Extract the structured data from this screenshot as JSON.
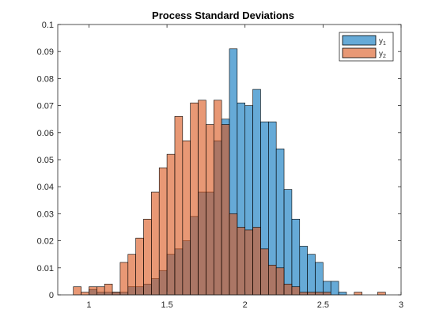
{
  "chart_data": {
    "type": "histogram",
    "title": "Process Standard Deviations",
    "xlabel": "",
    "ylabel": "",
    "xlim": [
      0.8,
      3.0
    ],
    "ylim": [
      0,
      0.1
    ],
    "x_ticks": [
      "1",
      "1.5",
      "2",
      "2.5",
      "3"
    ],
    "y_ticks": [
      "0",
      "0.01",
      "0.02",
      "0.03",
      "0.04",
      "0.05",
      "0.06",
      "0.07",
      "0.08",
      "0.09",
      "0.1"
    ],
    "bin_width": 0.05,
    "legend_position": "top-right",
    "series": [
      {
        "name_base": "y",
        "name_sub": "1",
        "color": "#0072BD",
        "bin_starts": [
          1.0,
          1.05,
          1.1,
          1.15,
          1.2,
          1.25,
          1.3,
          1.35,
          1.4,
          1.45,
          1.5,
          1.55,
          1.6,
          1.65,
          1.7,
          1.75,
          1.8,
          1.85,
          1.9,
          1.95,
          2.0,
          2.05,
          2.1,
          2.15,
          2.2,
          2.25,
          2.3,
          2.35,
          2.4,
          2.45,
          2.5,
          2.55,
          2.6
        ],
        "values": [
          0.002,
          0.001,
          0.001,
          0.001,
          0.001,
          0.003,
          0.003,
          0.004,
          0.006,
          0.009,
          0.015,
          0.017,
          0.02,
          0.029,
          0.038,
          0.038,
          0.057,
          0.065,
          0.091,
          0.071,
          0.07,
          0.076,
          0.064,
          0.064,
          0.054,
          0.039,
          0.028,
          0.018,
          0.015,
          0.012,
          0.005,
          0.005,
          0.001
        ]
      },
      {
        "name_base": "y",
        "name_sub": "2",
        "color": "#D95319",
        "bin_starts": [
          0.9,
          0.95,
          1.0,
          1.05,
          1.1,
          1.15,
          1.2,
          1.25,
          1.3,
          1.35,
          1.4,
          1.45,
          1.5,
          1.55,
          1.6,
          1.65,
          1.7,
          1.75,
          1.8,
          1.85,
          1.9,
          1.95,
          2.0,
          2.05,
          2.1,
          2.15,
          2.2,
          2.25,
          2.3,
          2.35,
          2.4,
          2.45,
          2.5,
          2.55,
          2.6,
          2.65,
          2.7,
          2.75,
          2.8,
          2.85
        ],
        "values": [
          0.003,
          0.001,
          0.003,
          0.003,
          0.004,
          0.001,
          0.012,
          0.015,
          0.021,
          0.028,
          0.038,
          0.047,
          0.052,
          0.066,
          0.057,
          0.071,
          0.072,
          0.063,
          0.072,
          0.063,
          0.03,
          0.025,
          0.024,
          0.025,
          0.017,
          0.011,
          0.01,
          0.004,
          0.003,
          0.001,
          0.001,
          0.001,
          0.001,
          0.0,
          0.0,
          0.0,
          0.001,
          0.0,
          0.0,
          0.001
        ]
      }
    ]
  }
}
